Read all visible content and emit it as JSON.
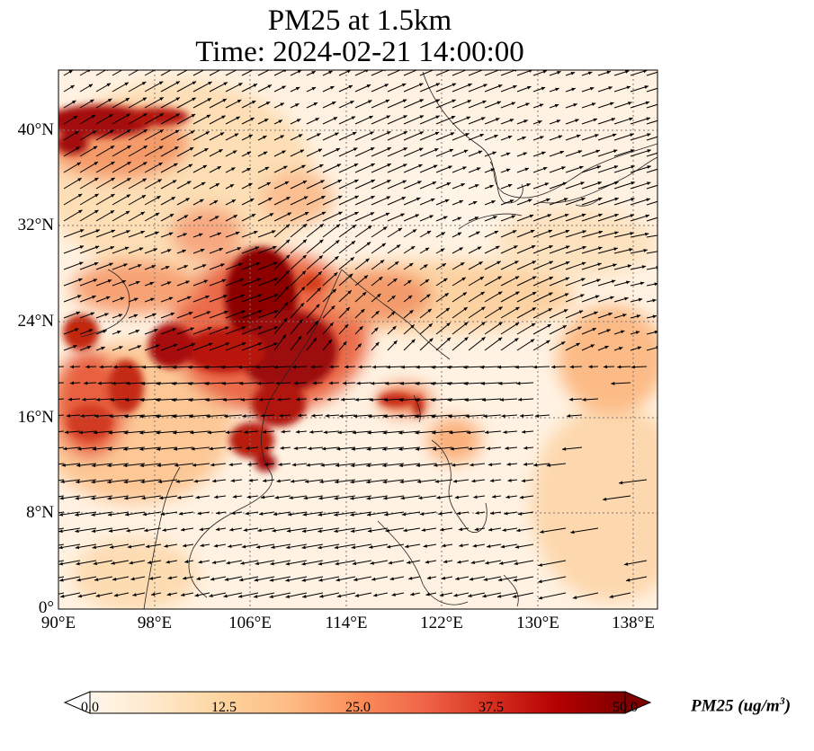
{
  "title": {
    "line1": "PM25 at 1.5km",
    "line2": "Time: 2024-02-21 14:00:00"
  },
  "map": {
    "projection": "PlateCarree",
    "lon_range": [
      90,
      140
    ],
    "lat_range": [
      0,
      45
    ],
    "gridlines": "dotted",
    "lat_ticks": [
      {
        "value": 40,
        "label": "40°N"
      },
      {
        "value": 32,
        "label": "32°N"
      },
      {
        "value": 24,
        "label": "24°N"
      },
      {
        "value": 16,
        "label": "16°N"
      },
      {
        "value": 8,
        "label": "8°N"
      },
      {
        "value": 0,
        "label": "0°"
      }
    ],
    "lon_ticks": [
      {
        "value": 90,
        "label": "90°E"
      },
      {
        "value": 98,
        "label": "98°E"
      },
      {
        "value": 106,
        "label": "106°E"
      },
      {
        "value": 114,
        "label": "114°E"
      },
      {
        "value": 122,
        "label": "122°E"
      },
      {
        "value": 130,
        "label": "130°E"
      },
      {
        "value": 138,
        "label": "138°E"
      }
    ],
    "field": "PM2.5 concentration with wind vectors"
  },
  "colorbar": {
    "label_main": "PM25 (ug/m",
    "label_sup": "3",
    "label_end": ")",
    "min": 0,
    "max": 50,
    "colormap": "OrRd",
    "colors": [
      "#fff7ec",
      "#fee8c8",
      "#fdd49e",
      "#fdbb84",
      "#fc8d59",
      "#ef6548",
      "#d7301f",
      "#b30000",
      "#7f0000"
    ],
    "ticks": [
      "0.0",
      "12.5",
      "25.0",
      "37.5",
      "50.0"
    ]
  }
}
